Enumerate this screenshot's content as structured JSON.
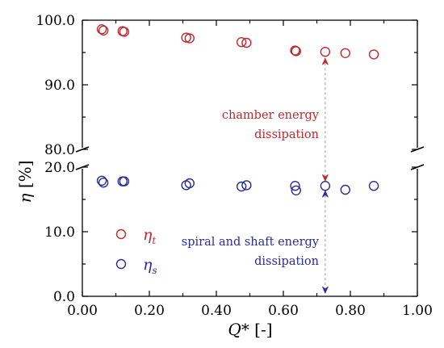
{
  "chart_data": {
    "type": "scatter",
    "xlabel": "Q* [-]",
    "ylabel": "η [%]",
    "xlim": [
      0.0,
      1.0
    ],
    "x_ticks": [
      "0.00",
      "0.20",
      "0.40",
      "0.60",
      "0.80",
      "1.00"
    ],
    "y_upper_range": [
      80.0,
      100.0
    ],
    "y_upper_ticks": [
      "100.0",
      "90.0",
      "80.0"
    ],
    "y_lower_range": [
      0.0,
      20.0
    ],
    "y_lower_ticks": [
      "20.0",
      "10.0",
      "0.0"
    ],
    "broken_y_axis": true,
    "grid": false,
    "legend_position": "lower-left",
    "series": [
      {
        "name": "ηt",
        "color": "#c0282d",
        "marker": "open-circle",
        "points": [
          [
            0.058,
            98.6
          ],
          [
            0.063,
            98.4
          ],
          [
            0.12,
            98.3
          ],
          [
            0.125,
            98.2
          ],
          [
            0.31,
            97.3
          ],
          [
            0.32,
            97.2
          ],
          [
            0.475,
            96.6
          ],
          [
            0.49,
            96.5
          ],
          [
            0.635,
            95.3
          ],
          [
            0.638,
            95.2
          ],
          [
            0.725,
            95.1
          ],
          [
            0.785,
            94.9
          ],
          [
            0.87,
            94.7
          ]
        ]
      },
      {
        "name": "ηs",
        "color": "#2b2b9a",
        "marker": "open-circle",
        "points": [
          [
            0.058,
            17.9
          ],
          [
            0.063,
            17.6
          ],
          [
            0.12,
            17.8
          ],
          [
            0.125,
            17.8
          ],
          [
            0.31,
            17.2
          ],
          [
            0.32,
            17.5
          ],
          [
            0.475,
            17.0
          ],
          [
            0.49,
            17.2
          ],
          [
            0.635,
            17.1
          ],
          [
            0.638,
            16.4
          ],
          [
            0.725,
            17.1
          ],
          [
            0.785,
            16.5
          ],
          [
            0.87,
            17.1
          ]
        ]
      }
    ],
    "annotations": [
      {
        "text_lines": [
          "chamber energy",
          "dissipation"
        ],
        "color": "#c0282d"
      },
      {
        "text_lines": [
          "spiral and shaft energy",
          "dissipation"
        ],
        "color": "#2b2b9a"
      }
    ],
    "arrows": {
      "x": 0.725,
      "upper_segment": [
        95.1,
        17.1
      ],
      "lower_segment": [
        17.1,
        0.0
      ]
    },
    "legend": [
      {
        "symbol": "η",
        "subscript": "t",
        "color": "#c0282d"
      },
      {
        "symbol": "η",
        "subscript": "s",
        "color": "#2b2b9a"
      }
    ]
  }
}
